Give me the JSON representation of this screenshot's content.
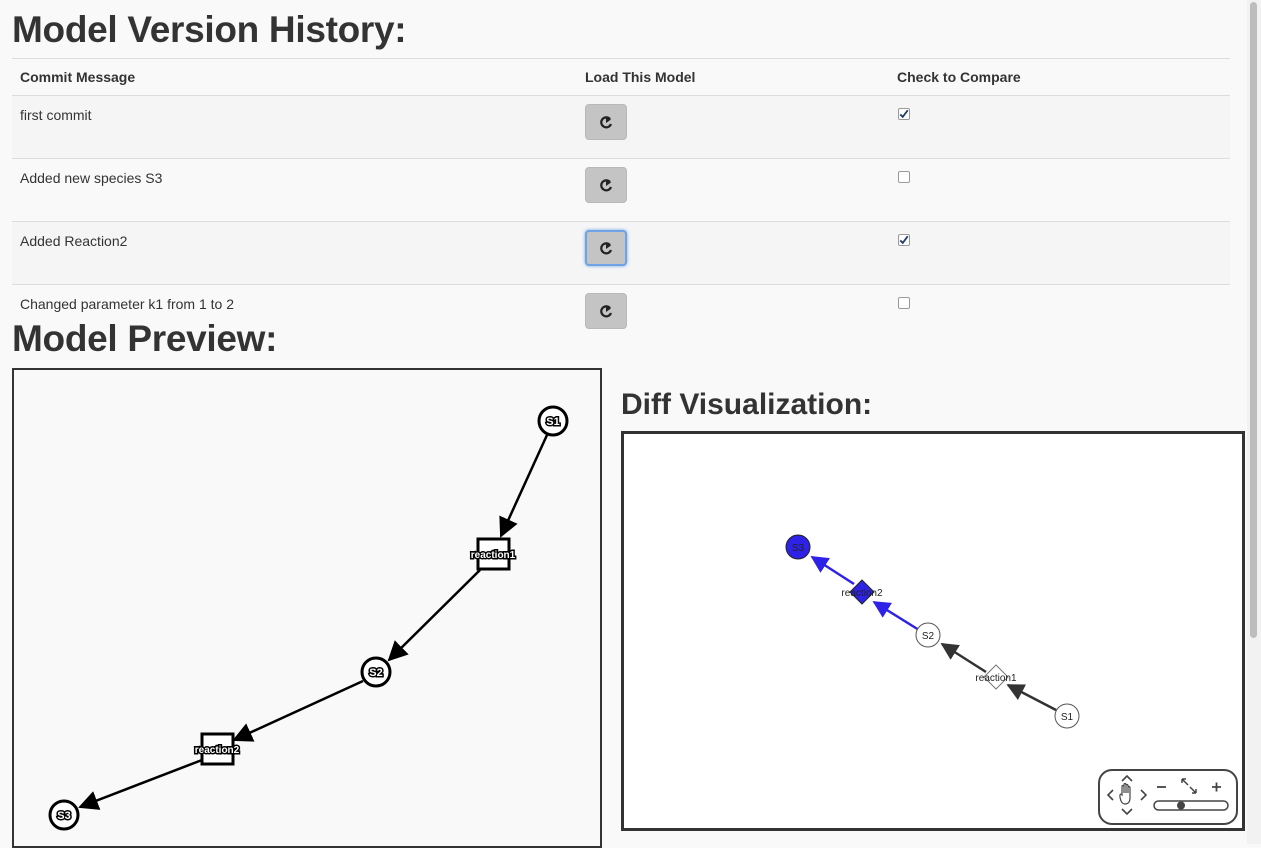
{
  "history": {
    "title": "Model Version History:",
    "headers": {
      "message": "Commit Message",
      "load": "Load This Model",
      "compare": "Check to Compare"
    },
    "rows": [
      {
        "message": "first commit",
        "checked": true
      },
      {
        "message": "Added new species S3",
        "checked": false
      },
      {
        "message": "Added Reaction2",
        "checked": true
      },
      {
        "message": "Changed parameter k1 from 1 to 2",
        "checked": false
      }
    ]
  },
  "preview": {
    "title": "Model Preview:",
    "nodes": {
      "s1": "S1",
      "reaction1": "reaction1",
      "s2": "S2",
      "reaction2": "reaction2",
      "s3": "S3"
    }
  },
  "diff": {
    "title": "Diff Visualization:",
    "nodes": {
      "s3": "S3",
      "reaction2": "reaction2",
      "s2": "S2",
      "reaction1": "reaction1",
      "s1": "S1"
    },
    "colors": {
      "added": "#2e22e6",
      "unchanged": "#333333"
    }
  },
  "icons": {
    "load": "share-arrow-icon",
    "pan": "hand-pan-icon",
    "zoom_in": "plus-icon",
    "zoom_out": "minus-icon",
    "fit": "fit-expand-icon"
  }
}
